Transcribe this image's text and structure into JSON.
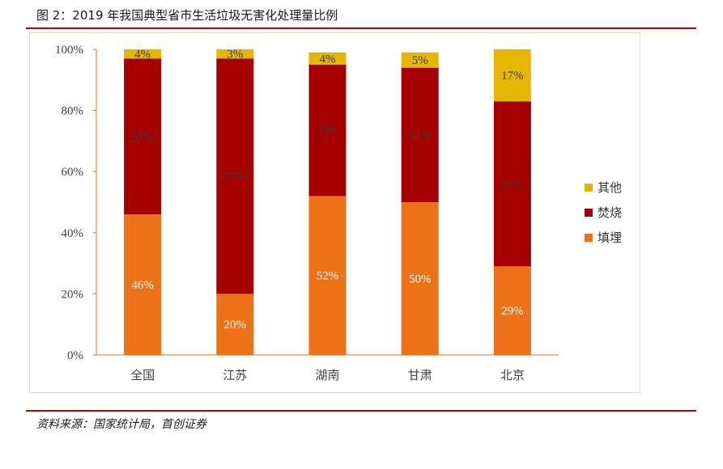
{
  "figure": {
    "title": "图 2：2019 年我国典型省市生活垃圾无害化处理量比例",
    "source": "资料来源：国家统计局，首创证券"
  },
  "chart_data": {
    "type": "bar",
    "stacked": true,
    "categories": [
      "全国",
      "江苏",
      "湖南",
      "甘肃",
      "北京"
    ],
    "series": [
      {
        "name": "填埋",
        "color": "#ED7117",
        "values": [
          46,
          20,
          52,
          50,
          29
        ],
        "labels": [
          "46%",
          "20%",
          "52%",
          "50%",
          "29%"
        ]
      },
      {
        "name": "焚烧",
        "color": "#A50000",
        "values": [
          51,
          77,
          43,
          44,
          54
        ],
        "labels": [
          "51%",
          "77%",
          "43%",
          "44%",
          "54%"
        ]
      },
      {
        "name": "其他",
        "color": "#E5B800",
        "values": [
          4,
          3,
          4,
          5,
          17
        ],
        "labels": [
          "4%",
          "3%",
          "4%",
          "5%",
          "17%"
        ]
      }
    ],
    "y_ticks": [
      "0%",
      "20%",
      "40%",
      "60%",
      "80%",
      "100%"
    ],
    "ylim": [
      0,
      100
    ],
    "legend_position": "right",
    "grid": false
  }
}
